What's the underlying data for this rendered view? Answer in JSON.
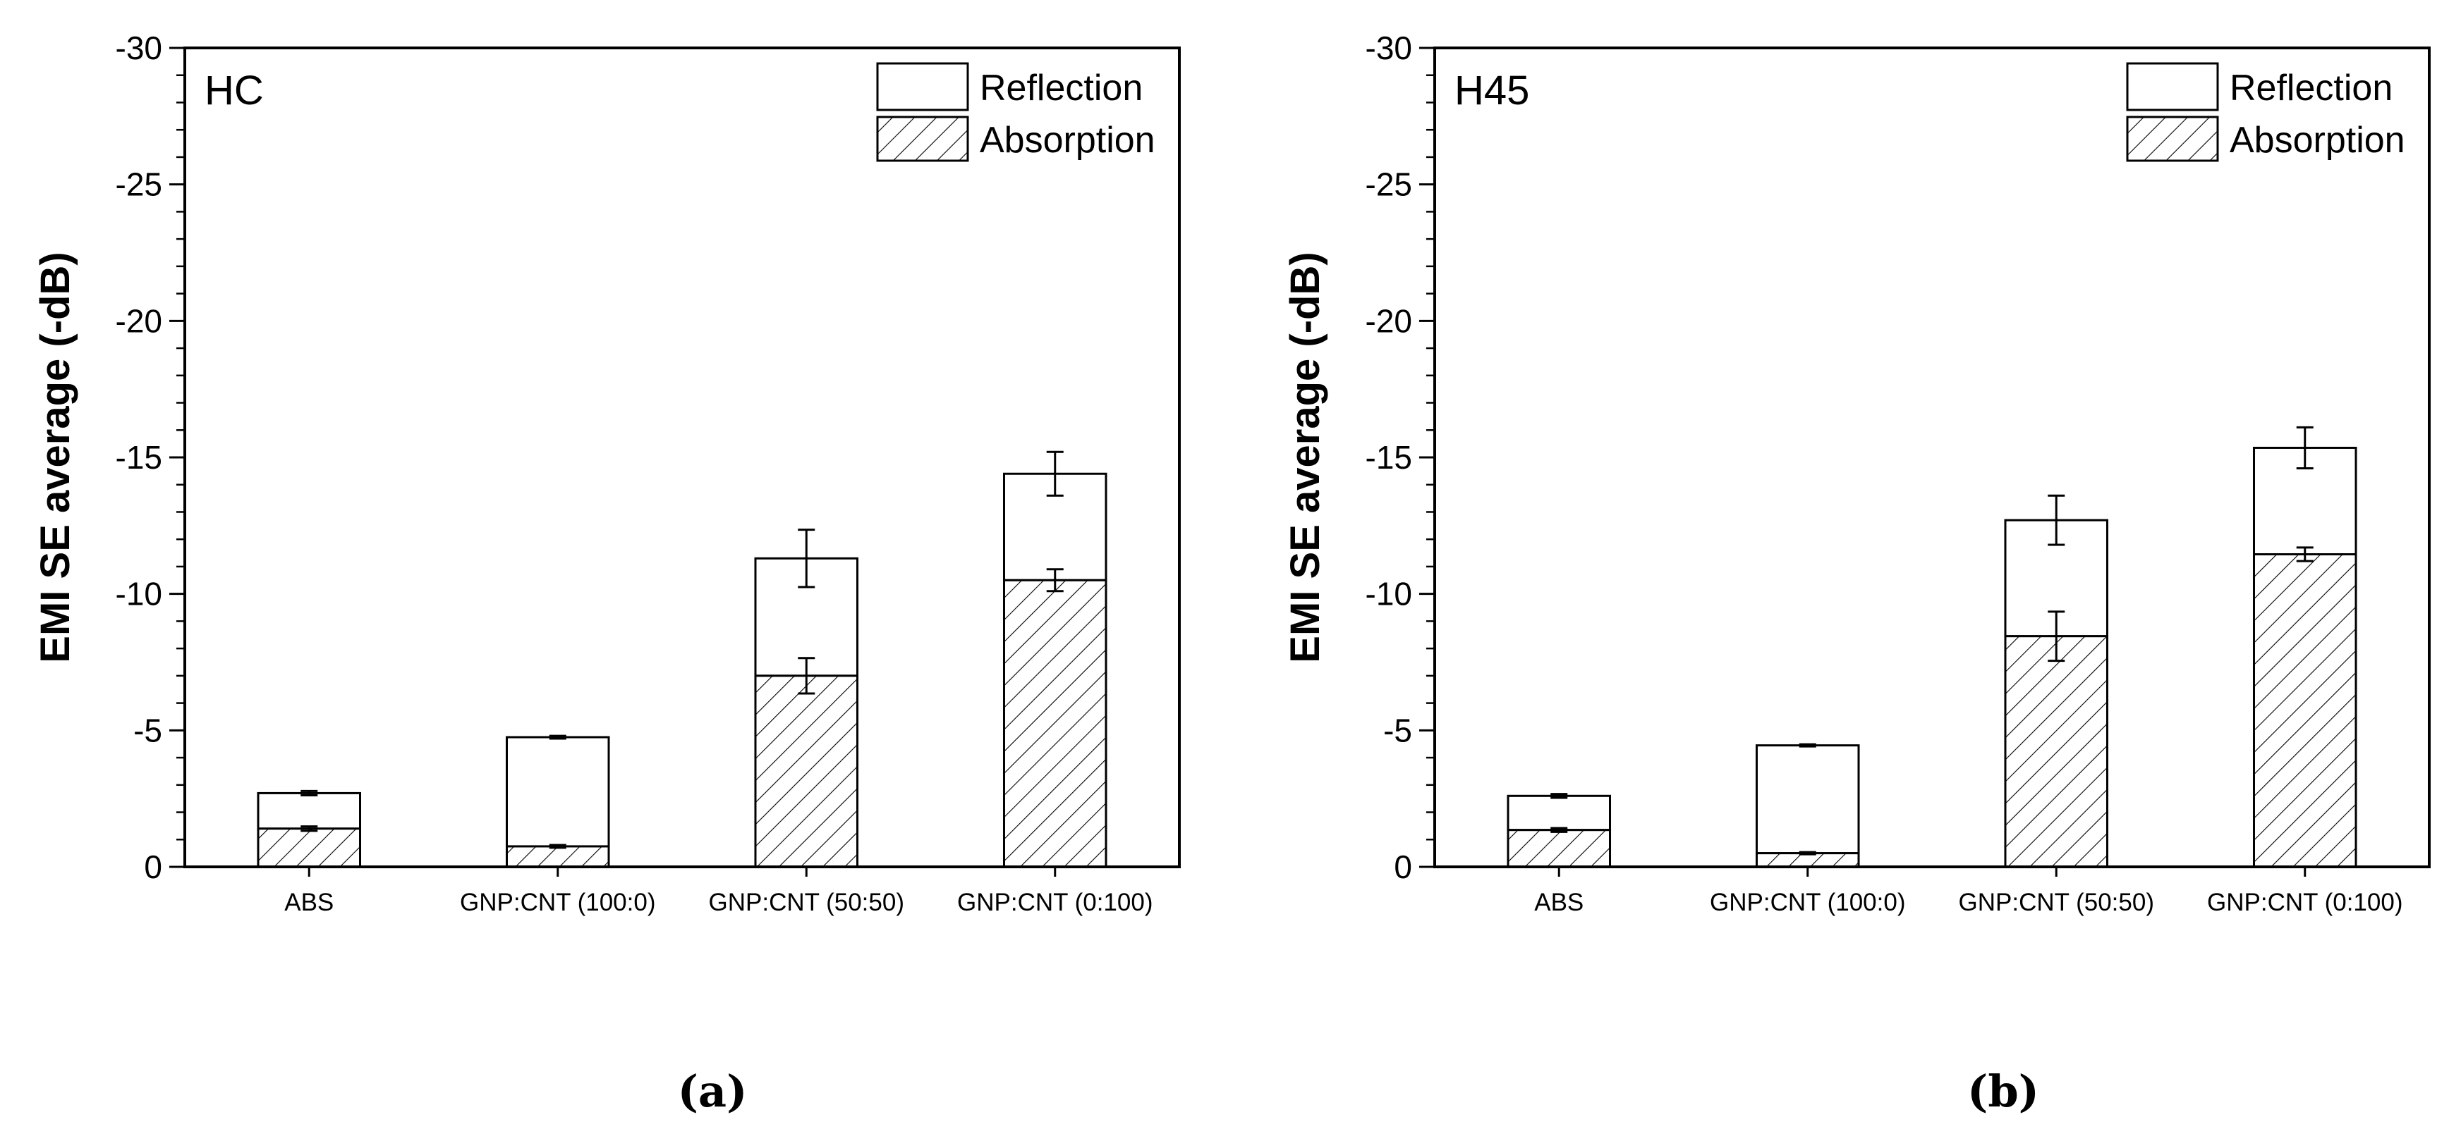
{
  "chart_data": [
    {
      "type": "bar",
      "stacked": true,
      "title": "HC",
      "caption": "(a)",
      "ylabel": "EMI SE average (-dB)",
      "xlabel": "",
      "ylim": [
        0,
        -30
      ],
      "yticks": [
        0,
        -5,
        -10,
        -15,
        -20,
        -25,
        -30
      ],
      "ytick_labels": [
        "0",
        "-5",
        "-10",
        "-15",
        "-20",
        "-25",
        "-30"
      ],
      "categories": [
        "ABS",
        "GNP:CNT (100:0)",
        "GNP:CNT (50:50)",
        "GNP:CNT (0:100)"
      ],
      "series": [
        {
          "name": "Absorption",
          "values": [
            -1.4,
            -0.75,
            -7.0,
            -10.5
          ],
          "errors": [
            0.08,
            0.05,
            0.65,
            0.4
          ]
        },
        {
          "name": "Reflection",
          "values": [
            -1.3,
            -4.0,
            -4.3,
            -3.9
          ],
          "errors": [
            0.08,
            0.05,
            1.05,
            0.8
          ]
        }
      ],
      "legend": {
        "position": "top-right",
        "entries": [
          "Reflection",
          "Absorption"
        ]
      }
    },
    {
      "type": "bar",
      "stacked": true,
      "title": "H45",
      "caption": "(b)",
      "ylabel": "EMI SE average (-dB)",
      "xlabel": "",
      "ylim": [
        0,
        -30
      ],
      "yticks": [
        0,
        -5,
        -10,
        -15,
        -20,
        -25,
        -30
      ],
      "ytick_labels": [
        "0",
        "-5",
        "-10",
        "-15",
        "-20",
        "-25",
        "-30"
      ],
      "categories": [
        "ABS",
        "GNP:CNT (100:0)",
        "GNP:CNT (50:50)",
        "GNP:CNT (0:100)"
      ],
      "series": [
        {
          "name": "Absorption",
          "values": [
            -1.35,
            -0.5,
            -8.45,
            -11.45
          ],
          "errors": [
            0.07,
            0.04,
            0.9,
            0.25
          ]
        },
        {
          "name": "Reflection",
          "values": [
            -1.25,
            -3.95,
            -4.25,
            -3.9
          ],
          "errors": [
            0.07,
            0.04,
            0.9,
            0.75
          ]
        }
      ],
      "legend": {
        "position": "top-right",
        "entries": [
          "Reflection",
          "Absorption"
        ]
      }
    }
  ]
}
